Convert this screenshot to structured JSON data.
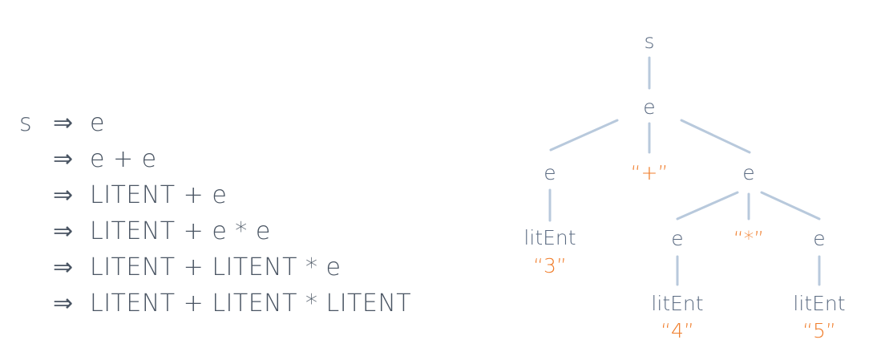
{
  "derivation": {
    "start_symbol": "s",
    "arrow": "⇒",
    "steps": [
      "e",
      "e + e",
      "LITENT + e",
      "LITENT + e * e",
      "LITENT + LITENT * e",
      "LITENT + LITENT * LITENT"
    ]
  },
  "tree": {
    "root": "s",
    "e_top": "e",
    "e_left": "e",
    "plus": "“+”",
    "e_right": "e",
    "litent_left": "litEnt",
    "lit_3": "“3”",
    "e_rl": "e",
    "star": "“*”",
    "e_rr": "e",
    "litent_mid": "litEnt",
    "lit_4": "“4”",
    "litent_right": "litEnt",
    "lit_5": "“5”"
  },
  "colors": {
    "node_text": "#5b6b82",
    "literal_text": "#f07d2b",
    "edge": "#b8c9dc",
    "derivation_text": "#4a5563"
  }
}
